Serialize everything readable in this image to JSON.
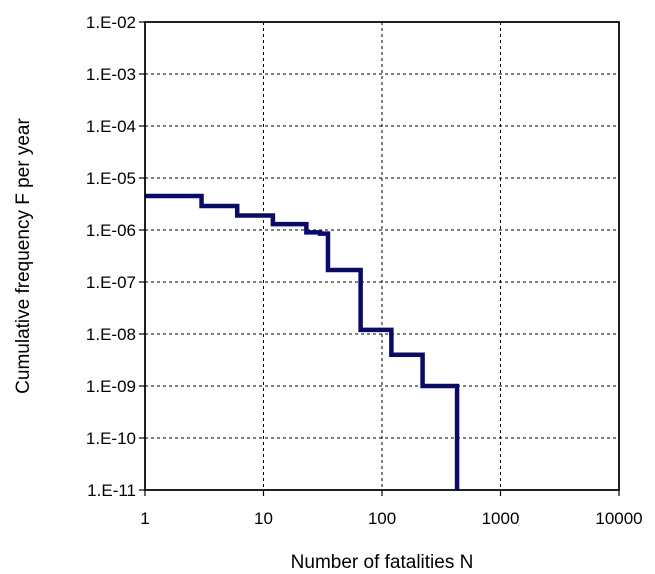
{
  "chart_data": {
    "type": "line",
    "step": true,
    "xscale": "log",
    "yscale": "log",
    "xlim": [
      1,
      10000
    ],
    "ylim": [
      1e-11,
      0.01
    ],
    "xlabel": "Number of fatalities N",
    "ylabel": "Cumulative frequency F per year",
    "x_ticks": [
      "1",
      "10",
      "100",
      "1000",
      "10000"
    ],
    "y_ticks": [
      "1.E-11",
      "1.E-10",
      "1.E-09",
      "1.E-08",
      "1.E-07",
      "1.E-06",
      "1.E-05",
      "1.E-04",
      "1.E-03",
      "1.E-02"
    ],
    "grid": true,
    "grid_style": "dashed",
    "colors": {
      "series": "#0a0a6e",
      "grid": "#000000"
    },
    "series": [
      {
        "points": [
          [
            1,
            4.5e-06
          ],
          [
            3,
            4.5e-06
          ],
          [
            3,
            2.9e-06
          ],
          [
            6,
            2.9e-06
          ],
          [
            6,
            1.9e-06
          ],
          [
            12,
            1.9e-06
          ],
          [
            12,
            1.3e-06
          ],
          [
            23,
            1.3e-06
          ],
          [
            23,
            9e-07
          ],
          [
            30,
            9e-07
          ],
          [
            30,
            8.5e-07
          ],
          [
            35,
            8.5e-07
          ],
          [
            35,
            1.7e-07
          ],
          [
            66,
            1.7e-07
          ],
          [
            66,
            1.2e-08
          ],
          [
            120,
            1.2e-08
          ],
          [
            120,
            4e-09
          ],
          [
            220,
            4e-09
          ],
          [
            220,
            1e-09
          ],
          [
            430,
            1e-09
          ],
          [
            430,
            1e-11
          ]
        ]
      }
    ]
  }
}
